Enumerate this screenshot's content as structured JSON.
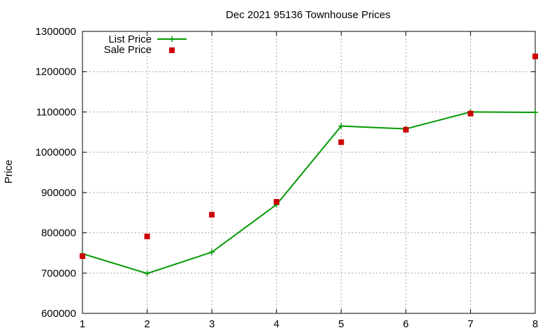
{
  "chart_data": {
    "type": "line",
    "title": "Dec 2021 95136 Townhouse Prices",
    "xlabel": "",
    "ylabel": "Price",
    "x": [
      1,
      2,
      3,
      4,
      5,
      6,
      7,
      8
    ],
    "xlim": [
      1,
      8
    ],
    "ylim": [
      600000,
      1300000
    ],
    "xticks": [
      "1",
      "2",
      "3",
      "4",
      "5",
      "6",
      "7",
      "8"
    ],
    "yticks": [
      "600000",
      "700000",
      "800000",
      "900000",
      "1000000",
      "1100000",
      "1200000",
      "1300000"
    ],
    "grid": true,
    "legend_position": "top-left",
    "series": [
      {
        "name": "List Price",
        "style": "line-with-plus-markers",
        "color": "#009900",
        "values": [
          748000,
          699000,
          752000,
          870000,
          1065000,
          1058000,
          1100000,
          1099000
        ]
      },
      {
        "name": "Sale Price",
        "style": "square-points",
        "color": "#cc0000",
        "values": [
          742000,
          791000,
          845000,
          877000,
          1025000,
          1056000,
          1096000,
          1238000
        ]
      }
    ]
  }
}
